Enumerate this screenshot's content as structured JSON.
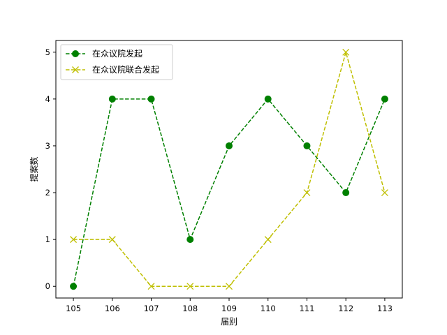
{
  "chart_data": {
    "type": "line",
    "title": "",
    "xlabel": "届别",
    "ylabel": "提案数",
    "x": [
      "105",
      "106",
      "107",
      "108",
      "109",
      "110",
      "111",
      "112",
      "113"
    ],
    "xlim": [
      104.55,
      113.45
    ],
    "ylim": [
      -0.25,
      5.25
    ],
    "yticks": [
      "0",
      "1",
      "2",
      "3",
      "4",
      "5"
    ],
    "grid": false,
    "legend_position": "upper-left",
    "series": [
      {
        "name": "在众议院发起",
        "values": [
          0,
          4,
          4,
          1,
          3,
          4,
          3,
          2,
          4
        ],
        "color": "#008000",
        "marker": "circle",
        "line_style": "dashed"
      },
      {
        "name": "在众议院联合发起",
        "values": [
          1,
          1,
          0,
          0,
          0,
          1,
          2,
          5,
          2
        ],
        "color": "#bfbf00",
        "marker": "x",
        "line_style": "dashed"
      }
    ]
  }
}
